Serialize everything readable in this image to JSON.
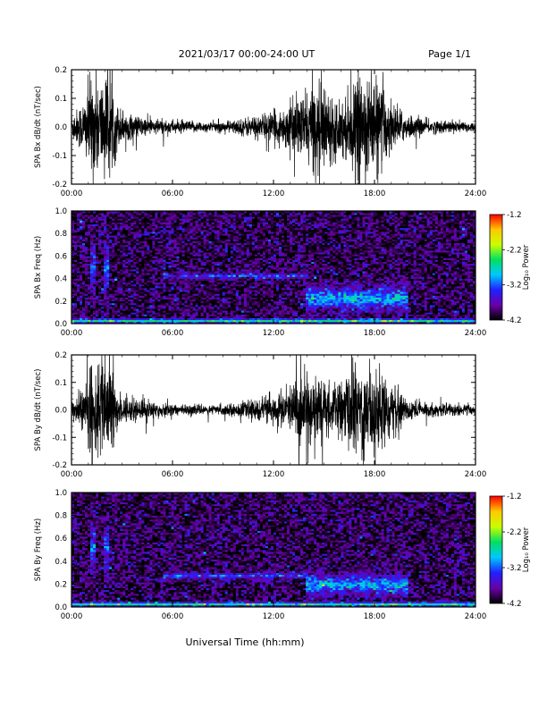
{
  "header": {
    "title": "2021/03/17  00:00-24:00 UT",
    "page": "Page 1/1"
  },
  "chart_data": [
    {
      "type": "line",
      "ylabel": "SPA Bx dB/dt (nT/sec)",
      "ylim": [
        -0.2,
        0.2
      ],
      "yticks": [
        "0.2",
        "0.1",
        "0.0",
        "-0.1",
        "-0.2"
      ],
      "xlim": [
        "00:00",
        "24:00"
      ],
      "xticks": [
        "00:00",
        "06:00",
        "12:00",
        "18:00",
        "24:00"
      ],
      "envelope": {
        "hours": [
          0,
          0.3,
          0.8,
          1.1,
          1.5,
          1.9,
          2.3,
          2.8,
          3.5,
          4.5,
          5.5,
          6.5,
          7.5,
          8.5,
          9.5,
          10.5,
          11.2,
          12,
          12.5,
          13,
          13.5,
          14,
          14.5,
          15,
          15.5,
          16,
          16.5,
          17,
          17.5,
          18,
          18.5,
          19,
          19.5,
          20,
          21,
          22,
          23,
          24
        ],
        "amplitude": [
          0.06,
          0.07,
          0.12,
          0.2,
          0.2,
          0.2,
          0.2,
          0.08,
          0.05,
          0.035,
          0.03,
          0.025,
          0.022,
          0.02,
          0.025,
          0.04,
          0.05,
          0.06,
          0.07,
          0.1,
          0.12,
          0.14,
          0.18,
          0.18,
          0.12,
          0.11,
          0.14,
          0.2,
          0.2,
          0.2,
          0.16,
          0.1,
          0.07,
          0.05,
          0.03,
          0.025,
          0.025,
          0.02
        ]
      }
    },
    {
      "type": "heatmap",
      "ylabel": "SPA Bx Freq (Hz)",
      "ylim": [
        0.0,
        1.0
      ],
      "yticks": [
        "1.0",
        "0.8",
        "0.6",
        "0.4",
        "0.2",
        "0.0"
      ],
      "xlim": [
        "00:00",
        "24:00"
      ],
      "xticks": [
        "00:00",
        "06:00",
        "12:00",
        "18:00",
        "24:00"
      ],
      "colorbar": {
        "label": "Log₁₀ Power",
        "ticks": [
          "-1.2",
          "-2.2",
          "-3.2",
          "-4.2"
        ],
        "range": [
          -4.2,
          -1.2
        ],
        "colors": [
          "#000000",
          "#6a00a8",
          "#2020ff",
          "#00c8ff",
          "#00e060",
          "#c8ff00",
          "#ffc800",
          "#ff0000"
        ]
      },
      "features": [
        {
          "description_hours": [
            0.0,
            24.0
          ],
          "freq_hz": [
            0.0,
            0.05
          ],
          "log_power": -2.6
        },
        {
          "description_hours": [
            14.0,
            20.0
          ],
          "freq_hz": [
            0.05,
            0.4
          ],
          "log_power": -2.9
        },
        {
          "description_hours": [
            5.5,
            14.0
          ],
          "freq_hz": [
            0.35,
            0.5
          ],
          "log_power": -3.3
        },
        {
          "description_hours": [
            1.2,
            1.5
          ],
          "freq_hz": [
            0.0,
            1.0
          ],
          "log_power": -3.2
        },
        {
          "description_hours": [
            1.9,
            2.2
          ],
          "freq_hz": [
            0.0,
            1.0
          ],
          "log_power": -3.2
        }
      ]
    },
    {
      "type": "line",
      "ylabel": "SPA By dB/dt (nT/sec)",
      "ylim": [
        -0.2,
        0.2
      ],
      "yticks": [
        "0.2",
        "0.1",
        "0.0",
        "-0.1",
        "-0.2"
      ],
      "xlim": [
        "00:00",
        "24:00"
      ],
      "xticks": [
        "00:00",
        "06:00",
        "12:00",
        "18:00",
        "24:00"
      ],
      "envelope": {
        "hours": [
          0,
          0.3,
          0.8,
          1.1,
          1.5,
          1.9,
          2.3,
          2.8,
          3.5,
          4.5,
          5.5,
          6.5,
          7.5,
          8.5,
          9.5,
          10.5,
          11.2,
          12,
          12.5,
          13,
          13.5,
          14,
          14.5,
          15,
          15.5,
          16,
          16.5,
          17,
          17.5,
          18,
          18.5,
          19,
          19.5,
          20,
          21,
          22,
          23,
          24
        ],
        "amplitude": [
          0.05,
          0.06,
          0.1,
          0.2,
          0.2,
          0.2,
          0.2,
          0.07,
          0.05,
          0.04,
          0.03,
          0.02,
          0.02,
          0.02,
          0.025,
          0.035,
          0.05,
          0.06,
          0.08,
          0.1,
          0.14,
          0.17,
          0.15,
          0.12,
          0.1,
          0.12,
          0.16,
          0.2,
          0.2,
          0.2,
          0.15,
          0.1,
          0.07,
          0.05,
          0.03,
          0.025,
          0.025,
          0.02
        ]
      }
    },
    {
      "type": "heatmap",
      "ylabel": "SPA By Freq (Hz)",
      "ylim": [
        0.0,
        1.0
      ],
      "yticks": [
        "1.0",
        "0.8",
        "0.6",
        "0.4",
        "0.2",
        "0.0"
      ],
      "xlim": [
        "00:00",
        "24:00"
      ],
      "xticks": [
        "00:00",
        "06:00",
        "12:00",
        "18:00",
        "24:00"
      ],
      "colorbar": {
        "label": "Log₁₀ Power",
        "ticks": [
          "-1.2",
          "-2.2",
          "-3.2",
          "-4.2"
        ],
        "range": [
          -4.2,
          -1.2
        ],
        "colors": [
          "#000000",
          "#6a00a8",
          "#2020ff",
          "#00c8ff",
          "#00e060",
          "#c8ff00",
          "#ffc800",
          "#ff0000"
        ]
      },
      "features": [
        {
          "description_hours": [
            0.0,
            24.0
          ],
          "freq_hz": [
            0.0,
            0.05
          ],
          "log_power": -2.6
        },
        {
          "description_hours": [
            14.0,
            20.0
          ],
          "freq_hz": [
            0.05,
            0.35
          ],
          "log_power": -2.9
        },
        {
          "description_hours": [
            5.5,
            14.0
          ],
          "freq_hz": [
            0.2,
            0.35
          ],
          "log_power": -3.3
        },
        {
          "description_hours": [
            1.2,
            1.5
          ],
          "freq_hz": [
            0.0,
            1.0
          ],
          "log_power": -3.2
        },
        {
          "description_hours": [
            1.9,
            2.2
          ],
          "freq_hz": [
            0.0,
            1.0
          ],
          "log_power": -3.2
        }
      ]
    }
  ],
  "footer": {
    "xlabel": "Universal Time (hh:mm)"
  }
}
